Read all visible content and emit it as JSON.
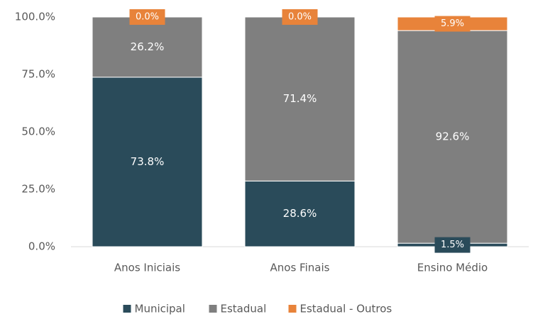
{
  "chart_data": {
    "type": "stacked_bar",
    "categories": [
      "Anos Iniciais",
      "Anos Finais",
      "Ensino Médio"
    ],
    "series": [
      {
        "name": "Municipal",
        "color": "#2a4b5a",
        "values": [
          73.8,
          28.6,
          1.5
        ],
        "value_labels": [
          "73.8%",
          "28.6%",
          "1.5%"
        ]
      },
      {
        "name": "Estadual",
        "color": "#7f7f7f",
        "values": [
          26.2,
          71.4,
          92.6
        ],
        "value_labels": [
          "26.2%",
          "71.4%",
          "92.6%"
        ]
      },
      {
        "name": "Estadual - Outros",
        "color": "#e8833a",
        "values": [
          0.0,
          0.0,
          5.9
        ],
        "value_labels": [
          "0.0%",
          "0.0%",
          "5.9%"
        ]
      }
    ],
    "ylim": [
      0,
      100
    ],
    "yticks": [
      {
        "value": 0,
        "label": "0.0%"
      },
      {
        "value": 25,
        "label": "25.0%"
      },
      {
        "value": 50,
        "label": "50.0%"
      },
      {
        "value": 75,
        "label": "75.0%"
      },
      {
        "value": 100,
        "label": "100.0%"
      }
    ],
    "legend": "bottom"
  }
}
